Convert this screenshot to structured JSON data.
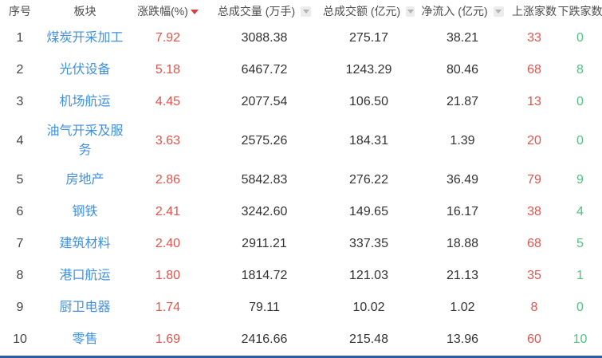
{
  "table": {
    "columns": [
      {
        "label": "序号"
      },
      {
        "label": "板块"
      },
      {
        "label": "涨跌幅(%)",
        "sort_indicator": "descending-active"
      },
      {
        "label": "总成交量 (万手)",
        "sort_indicator": "inactive"
      },
      {
        "label": "总成交额 (亿元)",
        "sort_indicator": "inactive"
      },
      {
        "label": "净流入 (亿元)",
        "sort_indicator": "inactive"
      },
      {
        "label": "上涨家数"
      },
      {
        "label": "下跌家数"
      }
    ],
    "rows": [
      {
        "rank": "1",
        "name": "煤炭开采加工",
        "change": "7.92",
        "volume": "3088.38",
        "turnover": "275.17",
        "inflow": "38.21",
        "rising": "33",
        "falling": "0"
      },
      {
        "rank": "2",
        "name": "光伏设备",
        "change": "5.18",
        "volume": "6467.72",
        "turnover": "1243.29",
        "inflow": "80.46",
        "rising": "68",
        "falling": "8"
      },
      {
        "rank": "3",
        "name": "机场航运",
        "change": "4.45",
        "volume": "2077.54",
        "turnover": "106.50",
        "inflow": "21.87",
        "rising": "13",
        "falling": "0"
      },
      {
        "rank": "4",
        "name": "油气开采及服务",
        "change": "3.63",
        "volume": "2575.26",
        "turnover": "184.31",
        "inflow": "1.39",
        "rising": "20",
        "falling": "0"
      },
      {
        "rank": "5",
        "name": "房地产",
        "change": "2.86",
        "volume": "5842.83",
        "turnover": "276.22",
        "inflow": "36.49",
        "rising": "79",
        "falling": "9"
      },
      {
        "rank": "6",
        "name": "钢铁",
        "change": "2.41",
        "volume": "3242.60",
        "turnover": "149.65",
        "inflow": "16.17",
        "rising": "38",
        "falling": "4"
      },
      {
        "rank": "7",
        "name": "建筑材料",
        "change": "2.40",
        "volume": "2911.21",
        "turnover": "337.35",
        "inflow": "18.88",
        "rising": "68",
        "falling": "5"
      },
      {
        "rank": "8",
        "name": "港口航运",
        "change": "1.80",
        "volume": "1814.72",
        "turnover": "121.03",
        "inflow": "21.13",
        "rising": "35",
        "falling": "1"
      },
      {
        "rank": "9",
        "name": "厨卫电器",
        "change": "1.74",
        "volume": "79.11",
        "turnover": "10.02",
        "inflow": "1.02",
        "rising": "8",
        "falling": "0"
      },
      {
        "rank": "10",
        "name": "零售",
        "change": "1.69",
        "volume": "2416.66",
        "turnover": "215.48",
        "inflow": "13.96",
        "rising": "60",
        "falling": "10"
      }
    ]
  },
  "colors": {
    "up_red": "#e0544c",
    "down_green": "#52c183",
    "sector_link_blue": "#4090dd",
    "active_sort_red": "#e03b3b",
    "bottom_bar_blue": "#2e5c9e"
  }
}
